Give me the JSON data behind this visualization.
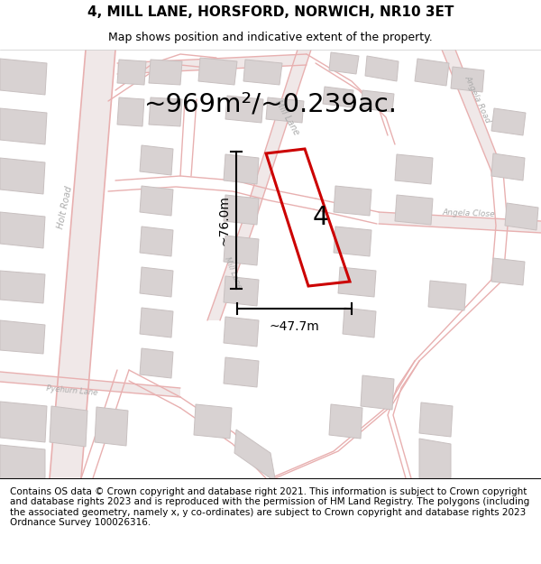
{
  "title_line1": "4, MILL LANE, HORSFORD, NORWICH, NR10 3ET",
  "title_line2": "Map shows position and indicative extent of the property.",
  "area_text": "~969m²/~0.239ac.",
  "plot_number": "4",
  "dim_vertical": "~76.0m",
  "dim_horizontal": "~47.7m",
  "footer_text": "Contains OS data © Crown copyright and database right 2021. This information is subject to Crown copyright and database rights 2023 and is reproduced with the permission of HM Land Registry. The polygons (including the associated geometry, namely x, y co-ordinates) are subject to Crown copyright and database rights 2023 Ordnance Survey 100026316.",
  "bg_color": "#ffffff",
  "map_bg_color": "#f8f6f6",
  "road_color": "#e8b0b0",
  "road_fill": "#f5eded",
  "road_edge": "#e8a8a8",
  "block_face": "#d8d2d2",
  "block_edge": "#c8c0c0",
  "plot_color": "#cc0000",
  "label_color": "#aaaaaa",
  "title_fontsize": 11,
  "subtitle_fontsize": 9,
  "area_fontsize": 21,
  "plot_label_fontsize": 20,
  "dim_fontsize": 10,
  "footer_fontsize": 7.5,
  "road_label_fontsize": 7
}
